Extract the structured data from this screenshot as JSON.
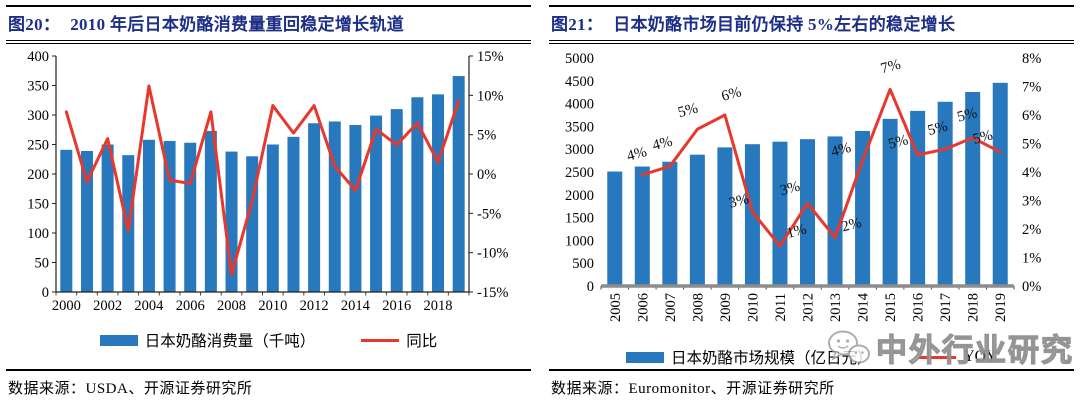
{
  "colors": {
    "bar_blue": "#2878bd",
    "line_red": "#e8382d",
    "title_navy": "#1d2e87",
    "axis_text": "#000000",
    "right_baseline_gray": "#8c8c8c",
    "watermark_gray": "#8f8f8f"
  },
  "left_panel": {
    "fig_label": "图20：",
    "title": "2010 年后日本奶酪消费量重回稳定增长轨道",
    "legend": [
      {
        "label": "日本奶酪消费量（千吨）",
        "marker": "bar"
      },
      {
        "label": "同比",
        "marker": "line"
      }
    ],
    "source": "数据来源：USDA、开源证券研究所"
  },
  "right_panel": {
    "fig_label": "图21：",
    "title": "日本奶酪市场目前仍保持 5%左右的稳定增长",
    "legend": [
      {
        "label": "日本奶酪市场规模（亿日元）",
        "marker": "bar"
      },
      {
        "label": "YOY",
        "marker": "line"
      }
    ],
    "source": "数据来源：Euromonitor、开源证券研究所"
  },
  "watermark": {
    "icon": "wechat-icon",
    "text": "中外行业研究"
  },
  "chart_data": [
    {
      "type": "bar",
      "title": "2010 年后日本奶酪消费量重回稳定增长轨道",
      "categories": [
        "2000",
        "2001",
        "2002",
        "2003",
        "2004",
        "2005",
        "2006",
        "2007",
        "2008",
        "2009",
        "2010",
        "2011",
        "2012",
        "2013",
        "2014",
        "2015",
        "2016",
        "2017",
        "2018",
        "2019"
      ],
      "x_tick_labels": [
        "2000",
        "2002",
        "2004",
        "2006",
        "2008",
        "2010",
        "2012",
        "2014",
        "2016",
        "2018"
      ],
      "series": [
        {
          "name": "日本奶酪消费量（千吨）",
          "type": "bar",
          "axis": "left",
          "values": [
            241,
            239,
            250,
            232,
            258,
            256,
            253,
            273,
            238,
            230,
            250,
            263,
            286,
            289,
            283,
            299,
            310,
            330,
            335,
            366
          ]
        },
        {
          "name": "同比",
          "type": "line",
          "axis": "right",
          "values": [
            7.9,
            -1.0,
            4.5,
            -7.2,
            11.2,
            -0.8,
            -1.2,
            7.9,
            -12.8,
            -3.4,
            8.7,
            5.2,
            8.7,
            1.0,
            -2.1,
            5.7,
            3.7,
            6.5,
            1.5,
            9.3
          ]
        }
      ],
      "left_axis": {
        "min": 0,
        "max": 400,
        "step": 50,
        "tick_labels": [
          "0",
          "50",
          "100",
          "150",
          "200",
          "250",
          "300",
          "350",
          "400"
        ]
      },
      "right_axis": {
        "min": -15,
        "max": 15,
        "step": 5,
        "format": "percent",
        "tick_labels": [
          "-15%",
          "-10%",
          "-5%",
          "0%",
          "5%",
          "10%",
          "15%"
        ]
      },
      "legend_position": "bottom",
      "grid": false
    },
    {
      "type": "bar",
      "title": "日本奶酪市场目前仍保持 5%左右的稳定增长",
      "categories": [
        "2005",
        "2006",
        "2007",
        "2008",
        "2009",
        "2010",
        "2011",
        "2012",
        "2013",
        "2014",
        "2015",
        "2016",
        "2017",
        "2018",
        "2019"
      ],
      "x_labels_rotated_90": true,
      "series": [
        {
          "name": "日本奶酪市场规模（亿日元）",
          "type": "bar",
          "axis": "left",
          "values": [
            2510,
            2620,
            2725,
            2880,
            3040,
            3110,
            3165,
            3220,
            3280,
            3400,
            3665,
            3840,
            4040,
            4255,
            4455
          ]
        },
        {
          "name": "YOY",
          "type": "line",
          "axis": "right",
          "values": [
            null,
            3.9,
            4.2,
            5.5,
            6.0,
            2.6,
            1.4,
            2.9,
            1.7,
            4.4,
            6.9,
            4.6,
            4.8,
            5.2,
            4.7
          ],
          "point_labels": [
            null,
            "4%",
            "4%",
            "5%",
            "6%",
            "3%",
            "1%",
            "3%",
            "2%",
            "4%",
            "7%",
            "5%",
            "5%",
            "5%",
            "5%"
          ],
          "label_offsets": [
            null,
            [
              -14,
              -14
            ],
            [
              -16,
              -16
            ],
            [
              -18,
              -12
            ],
            [
              -2,
              -14
            ],
            [
              -22,
              -4
            ],
            [
              8,
              -8
            ],
            [
              -26,
              -8
            ],
            [
              8,
              -6
            ],
            [
              -30,
              -4
            ],
            [
              -8,
              -16
            ],
            [
              -28,
              -6
            ],
            [
              -16,
              -14
            ],
            [
              -14,
              -16
            ],
            [
              -26,
              -8
            ]
          ]
        }
      ],
      "left_axis": {
        "min": 0,
        "max": 5000,
        "step": 500,
        "tick_labels": [
          "0",
          "500",
          "1000",
          "1500",
          "2000",
          "2500",
          "3000",
          "3500",
          "4000",
          "4500",
          "5000"
        ]
      },
      "right_axis": {
        "min": 0,
        "max": 8,
        "step": 1,
        "format": "percent",
        "tick_labels": [
          "0%",
          "1%",
          "2%",
          "3%",
          "4%",
          "5%",
          "6%",
          "7%",
          "8%"
        ]
      },
      "legend_position": "bottom",
      "grid": false
    }
  ]
}
